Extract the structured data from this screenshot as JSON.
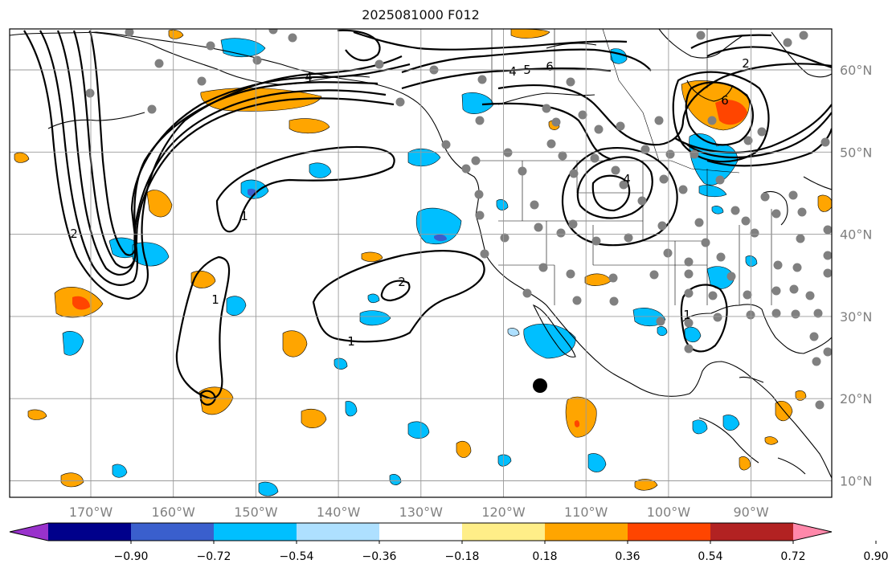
{
  "title": "2025081000 F012",
  "lon_labels": [
    "170°W",
    "160°W",
    "150°W",
    "140°W",
    "130°W",
    "120°W",
    "110°W",
    "100°W",
    "90°W"
  ],
  "lat_labels": [
    "60°N",
    "50°N",
    "40°N",
    "30°N",
    "20°N",
    "10°N"
  ],
  "colorbar": {
    "colors": [
      "#9932cc",
      "#00008b",
      "#3a5fcd",
      "#00bfff",
      "#aee0ff",
      "#ffffff",
      "#ffee88",
      "#ffa500",
      "#ff4500",
      "#b22222",
      "#ff88aa"
    ],
    "tick_labels": [
      "−0.90",
      "−0.72",
      "−0.54",
      "−0.36",
      "−0.18",
      "0.18",
      "0.36",
      "0.54",
      "0.72",
      "0.90"
    ]
  },
  "contour_labels": [
    "1",
    "1",
    "1",
    "1",
    "2",
    "2",
    "2",
    "4",
    "4",
    "4",
    "5",
    "6",
    "6"
  ],
  "colors": {
    "positive": "#ffa500",
    "positive_strong": "#ff4500",
    "negative": "#00bfff",
    "negative_light": "#aee0ff",
    "station": "#808080",
    "marker": "#000000"
  }
}
